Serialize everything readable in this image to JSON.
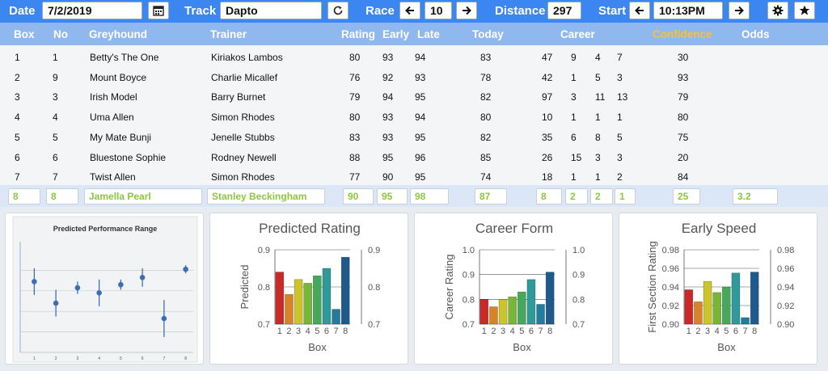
{
  "toolbar": {
    "date_label": "Date",
    "date_value": "7/2/2019",
    "track_label": "Track",
    "track_value": "Dapto",
    "race_label": "Race",
    "race_value": "10",
    "distance_label": "Distance",
    "distance_value": "297",
    "start_label": "Start",
    "start_value": "10:13PM",
    "icons": [
      "calendar-icon",
      "refresh-icon",
      "arrow-left-icon",
      "arrow-right-icon",
      "gear-icon",
      "star-icon"
    ]
  },
  "headers": {
    "box": "Box",
    "no": "No",
    "greyhound": "Greyhound",
    "trainer": "Trainer",
    "rating": "Rating",
    "early": "Early",
    "late": "Late",
    "today": "Today",
    "career": "Career",
    "confidence": "Confidence",
    "odds": "Odds"
  },
  "colors": {
    "accent": "#3b86f0",
    "header": "#8fb8ef",
    "confidence": "#f5c23a",
    "input_text": "#8dc63f"
  },
  "rows": [
    {
      "box": "1",
      "no": "1",
      "greyhound": "Betty's The One",
      "trainer": "Kiriakos Lambos",
      "rating": "80",
      "early": "93",
      "late": "94",
      "today": "83",
      "c1": "47",
      "c2": "9",
      "c3": "4",
      "c4": "7",
      "confidence": "30"
    },
    {
      "box": "2",
      "no": "9",
      "greyhound": "Mount Boyce",
      "trainer": "Charlie Micallef",
      "rating": "76",
      "early": "92",
      "late": "93",
      "today": "78",
      "c1": "42",
      "c2": "1",
      "c3": "5",
      "c4": "3",
      "confidence": "93"
    },
    {
      "box": "3",
      "no": "3",
      "greyhound": "Irish Model",
      "trainer": "Barry Burnet",
      "rating": "79",
      "early": "94",
      "late": "95",
      "today": "82",
      "c1": "97",
      "c2": "3",
      "c3": "11",
      "c4": "13",
      "confidence": "79"
    },
    {
      "box": "4",
      "no": "4",
      "greyhound": "Uma Allen",
      "trainer": "Simon Rhodes",
      "rating": "80",
      "early": "93",
      "late": "94",
      "today": "80",
      "c1": "10",
      "c2": "1",
      "c3": "1",
      "c4": "1",
      "confidence": "80"
    },
    {
      "box": "5",
      "no": "5",
      "greyhound": "My Mate Bunji",
      "trainer": "Jenelle Stubbs",
      "rating": "83",
      "early": "93",
      "late": "95",
      "today": "82",
      "c1": "35",
      "c2": "6",
      "c3": "8",
      "c4": "5",
      "confidence": "75"
    },
    {
      "box": "6",
      "no": "6",
      "greyhound": "Bluestone Sophie",
      "trainer": "Rodney Newell",
      "rating": "88",
      "early": "95",
      "late": "96",
      "today": "85",
      "c1": "26",
      "c2": "15",
      "c3": "3",
      "c4": "3",
      "confidence": "20"
    },
    {
      "box": "7",
      "no": "7",
      "greyhound": "Twist Allen",
      "trainer": "Simon Rhodes",
      "rating": "77",
      "early": "90",
      "late": "95",
      "today": "74",
      "c1": "18",
      "c2": "1",
      "c3": "1",
      "c4": "2",
      "confidence": "84"
    }
  ],
  "selected": {
    "box": "8",
    "no": "8",
    "greyhound": "Jamella Pearl",
    "trainer": "Stanley Beckingham",
    "rating": "90",
    "early": "95",
    "late": "98",
    "today": "87",
    "c1": "8",
    "c2": "2",
    "c3": "2",
    "c4": "1",
    "confidence": "25",
    "odds": "3.2"
  },
  "chart_data": [
    {
      "type": "scatter",
      "title": "Predicted Performance Range",
      "x": [
        1,
        2,
        3,
        4,
        5,
        6,
        7,
        8
      ],
      "y": [
        0.69,
        0.48,
        0.63,
        0.58,
        0.66,
        0.73,
        0.33,
        0.81
      ],
      "err_low": [
        0.13,
        0.13,
        0.06,
        0.13,
        0.05,
        0.09,
        0.18,
        0.04
      ],
      "err_high": [
        0.13,
        0.13,
        0.06,
        0.13,
        0.05,
        0.09,
        0.18,
        0.04
      ],
      "ylim": [
        0,
        1
      ],
      "x_tick_labels": [
        "1",
        "2",
        "3",
        "4",
        "5",
        "6",
        "7",
        "8"
      ],
      "grid": true
    },
    {
      "type": "bar",
      "title": "Predicted Rating",
      "xlabel": "Box",
      "ylabel": "Predicted",
      "categories": [
        "1",
        "2",
        "3",
        "4",
        "5",
        "6",
        "7",
        "8"
      ],
      "values": [
        0.84,
        0.78,
        0.82,
        0.81,
        0.83,
        0.85,
        0.74,
        0.88
      ],
      "ylim": [
        0.7,
        0.9
      ],
      "y_ticks": [
        "0.7",
        "0.8",
        "0.9"
      ],
      "secondary_axis": true,
      "grid": true
    },
    {
      "type": "bar",
      "title": "Career Form",
      "xlabel": "Box",
      "ylabel": "Career Rating",
      "categories": [
        "1",
        "2",
        "3",
        "4",
        "5",
        "6",
        "7",
        "8"
      ],
      "values": [
        0.8,
        0.77,
        0.8,
        0.81,
        0.83,
        0.88,
        0.78,
        0.91
      ],
      "ylim": [
        0.7,
        1.0
      ],
      "y_ticks": [
        "0.7",
        "0.8",
        "0.9",
        "1.0"
      ],
      "secondary_axis": true,
      "grid": true
    },
    {
      "type": "bar",
      "title": "Early Speed",
      "xlabel": "Box",
      "ylabel": "First Section Rating",
      "categories": [
        "1",
        "2",
        "3",
        "4",
        "5",
        "6",
        "7",
        "8"
      ],
      "values": [
        0.937,
        0.924,
        0.946,
        0.934,
        0.94,
        0.955,
        0.907,
        0.956
      ],
      "ylim": [
        0.9,
        0.98
      ],
      "y_ticks": [
        "0.90",
        "0.92",
        "0.94",
        "0.96",
        "0.98"
      ],
      "secondary_axis": true,
      "grid": true
    }
  ]
}
